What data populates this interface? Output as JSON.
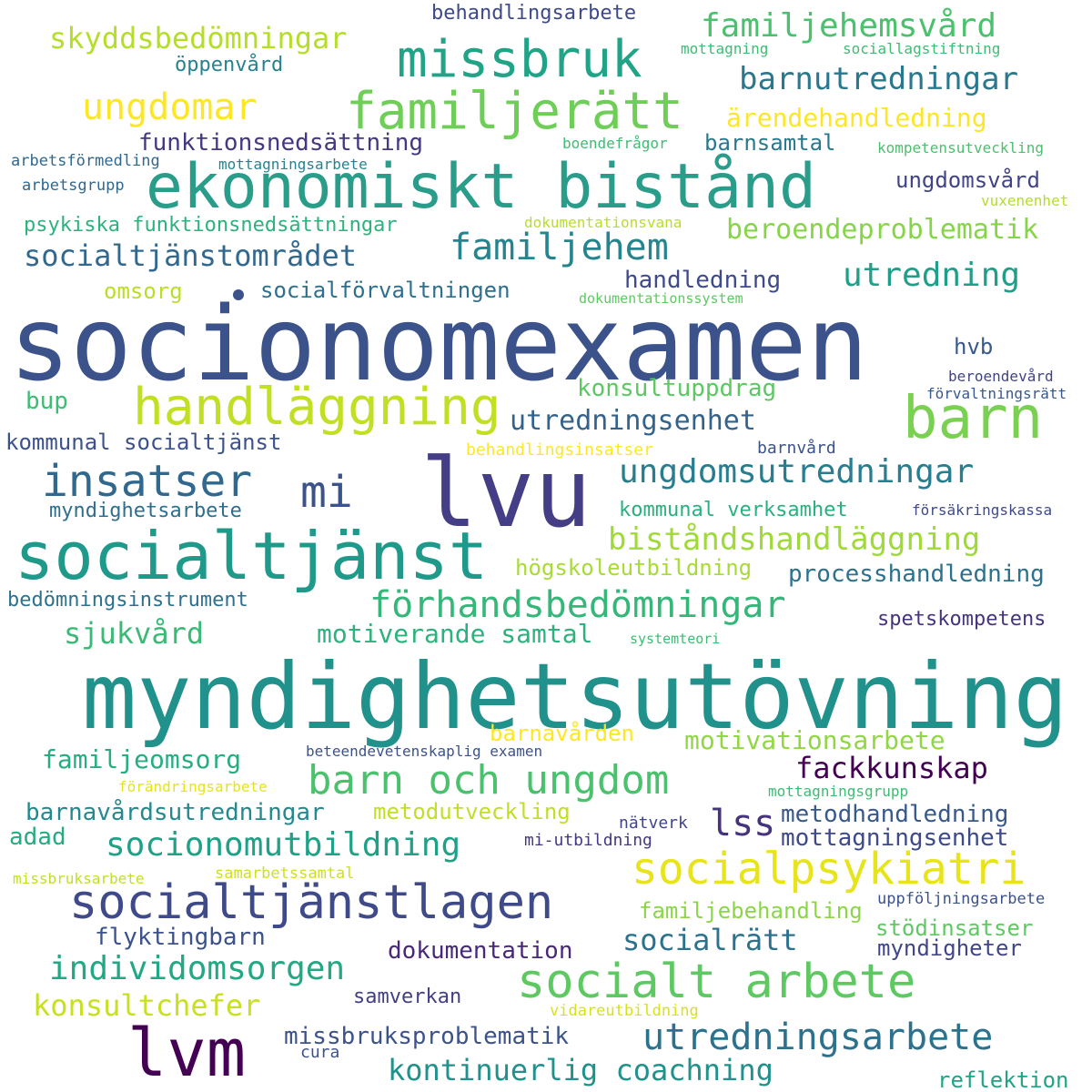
{
  "words": [
    {
      "text": "socionomexamen",
      "color": "#3b528b"
    },
    {
      "text": "myndighetsutövning",
      "color": "#21918c"
    },
    {
      "text": "ekonomiskt bistånd",
      "color": "#2a9d8a"
    },
    {
      "text": "lvu",
      "color": "#433e85"
    },
    {
      "text": "socialtjänst",
      "color": "#1f9a8a"
    },
    {
      "text": "barn",
      "color": "#7ad151"
    },
    {
      "text": "lvm",
      "color": "#440154"
    },
    {
      "text": "familjerätt",
      "color": "#6ece58"
    },
    {
      "text": "handläggning",
      "color": "#c2df23"
    },
    {
      "text": "socialtjänstlagen",
      "color": "#3e4a89"
    },
    {
      "text": "socialt arbete",
      "color": "#5ec962"
    },
    {
      "text": "missbruk",
      "color": "#20a386"
    },
    {
      "text": "barn och ungdom",
      "color": "#4ac16d"
    },
    {
      "text": "insatser",
      "color": "#31688e"
    },
    {
      "text": "socialpsykiatri",
      "color": "#e7e419"
    },
    {
      "text": "mi",
      "color": "#3b528b"
    },
    {
      "text": "förhandsbedömningar",
      "color": "#35b779"
    },
    {
      "text": "utredningsarbete",
      "color": "#2c728e"
    },
    {
      "text": "familjehem",
      "color": "#25858e"
    },
    {
      "text": "individomsorgen",
      "color": "#22a884"
    },
    {
      "text": "ungdomsutredningar",
      "color": "#287d8e"
    },
    {
      "text": "lss",
      "color": "#46337e"
    },
    {
      "text": "ungdomar",
      "color": "#fde725"
    },
    {
      "text": "familjehemsvård",
      "color": "#4ac16d"
    },
    {
      "text": "utredning",
      "color": "#1f9e89"
    },
    {
      "text": "socionomutbildning",
      "color": "#1fa187"
    },
    {
      "text": "biståndshandläggning",
      "color": "#a0da39"
    },
    {
      "text": "barnutredningar",
      "color": "#2a788e"
    },
    {
      "text": "skyddsbedömningar",
      "color": "#b5de2b"
    },
    {
      "text": "socialtjänstområdet",
      "color": "#31688e"
    },
    {
      "text": "kontinuerlig coachning",
      "color": "#21918c"
    },
    {
      "text": "konsultchefer",
      "color": "#c8e020"
    },
    {
      "text": "utredningsenhet",
      "color": "#33638d"
    },
    {
      "text": "socialrätt",
      "color": "#2c728e"
    },
    {
      "text": "beroendeproblematik",
      "color": "#86d549"
    },
    {
      "text": "fackkunskap",
      "color": "#440154"
    },
    {
      "text": "motivationsarbete",
      "color": "#90d743"
    },
    {
      "text": "sjukvård",
      "color": "#3aba76"
    },
    {
      "text": "familjeomsorg",
      "color": "#27ad81"
    },
    {
      "text": "motiverande samtal",
      "color": "#2db27d"
    },
    {
      "text": "ärendehandledning",
      "color": "#fde725"
    },
    {
      "text": "funktionsnedsättning",
      "color": "#453781"
    },
    {
      "text": "handledning",
      "color": "#3e4a89"
    },
    {
      "text": "processhandledning",
      "color": "#2c728e"
    },
    {
      "text": "barnavårdsutredningar",
      "color": "#23898e"
    },
    {
      "text": "metodhandledning",
      "color": "#38598c"
    },
    {
      "text": "missbruksproblematik",
      "color": "#3b528b"
    },
    {
      "text": "dokumentation",
      "color": "#482878"
    },
    {
      "text": "mottagningsenhet",
      "color": "#3e4a89"
    },
    {
      "text": "metodutveckling",
      "color": "#c0df25"
    },
    {
      "text": "kommunal socialtjänst",
      "color": "#3b528b"
    },
    {
      "text": "stödinsatser",
      "color": "#5ec962"
    },
    {
      "text": "myndigheter",
      "color": "#404688"
    },
    {
      "text": "familjebehandling",
      "color": "#8bd646"
    },
    {
      "text": "barnavården",
      "color": "#fde725"
    },
    {
      "text": "socialförvaltningen",
      "color": "#2d708e"
    },
    {
      "text": "högskoleutbildning",
      "color": "#a8db34"
    },
    {
      "text": "konsultuppdrag",
      "color": "#5cc863"
    },
    {
      "text": "ungdomsvård",
      "color": "#414487"
    },
    {
      "text": "barnsamtal",
      "color": "#29798e"
    },
    {
      "text": "reflektion",
      "color": "#20a386"
    },
    {
      "text": "kommunal verksamhet",
      "color": "#2ab07f"
    },
    {
      "text": "psykiska funktionsnedsättningar",
      "color": "#2db27d"
    },
    {
      "text": "öppenvård",
      "color": "#26828e"
    },
    {
      "text": "behandlingsarbete",
      "color": "#3e4989"
    },
    {
      "text": "bedömningsinstrument",
      "color": "#2c728e"
    },
    {
      "text": "myndighetsarbete",
      "color": "#2e6f8e"
    },
    {
      "text": "samverkan",
      "color": "#423f85"
    },
    {
      "text": "spetskompetens",
      "color": "#46337e"
    },
    {
      "text": "adad",
      "color": "#25ab82"
    },
    {
      "text": "omsorg",
      "color": "#bade28"
    },
    {
      "text": "bup",
      "color": "#3dbc74"
    },
    {
      "text": "hvb",
      "color": "#38598c"
    },
    {
      "text": "förändringsarbete",
      "color": "#e5e419"
    },
    {
      "text": "beteendevetenskaplig examen",
      "color": "#3b528b"
    },
    {
      "text": "behandlingsinsatser",
      "color": "#fde725"
    },
    {
      "text": "barnvård",
      "color": "#3b528b"
    },
    {
      "text": "vidareutbildning",
      "color": "#d8e219"
    },
    {
      "text": "missbruksarbete",
      "color": "#c2df23"
    },
    {
      "text": "samarbetssamtal",
      "color": "#d0e11c"
    },
    {
      "text": "uppföljningsarbete",
      "color": "#3b528b"
    },
    {
      "text": "nätverk",
      "color": "#404688"
    },
    {
      "text": "mi-utbildning",
      "color": "#453781"
    },
    {
      "text": "mottagningsgrupp",
      "color": "#3dbc74"
    },
    {
      "text": "försäkringskassa",
      "color": "#3e4a89"
    },
    {
      "text": "förvaltningsrätt",
      "color": "#38598c"
    },
    {
      "text": "beroendevård",
      "color": "#414487"
    },
    {
      "text": "systemteori",
      "color": "#3dbc74"
    },
    {
      "text": "dokumentationssystem",
      "color": "#5ec962"
    },
    {
      "text": "dokumentationsvana",
      "color": "#b8de29"
    },
    {
      "text": "vuxenenhet",
      "color": "#b5de2b"
    },
    {
      "text": "kompetensutveckling",
      "color": "#4ac16d"
    },
    {
      "text": "boendefrågor",
      "color": "#3dbc74"
    },
    {
      "text": "mottagning",
      "color": "#3dbc74"
    },
    {
      "text": "sociallagstiftning",
      "color": "#3dbc74"
    },
    {
      "text": "arbetsförmedling",
      "color": "#31688e"
    },
    {
      "text": "arbetsgrupp",
      "color": "#31688e"
    },
    {
      "text": "mottagningsarbete",
      "color": "#26828e"
    },
    {
      "text": "flyktingbarn",
      "color": "#3b528b"
    },
    {
      "text": "cura",
      "color": "#3b528b"
    }
  ]
}
